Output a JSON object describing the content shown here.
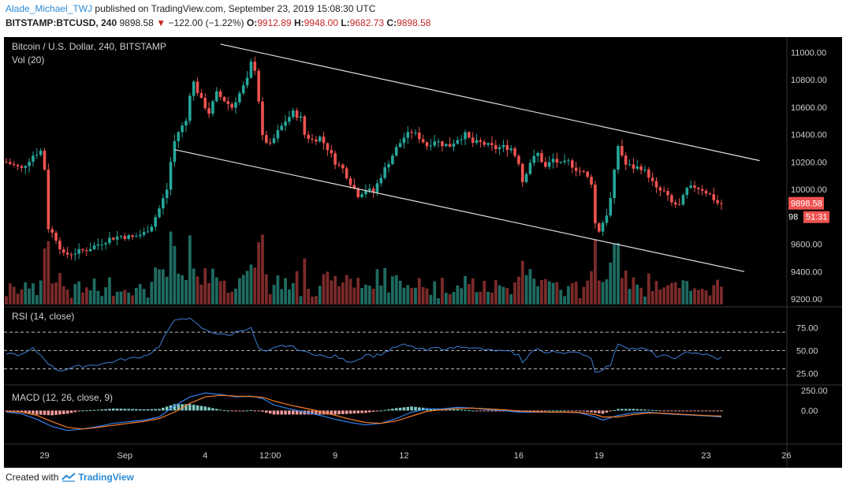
{
  "header": {
    "author": "Alade_Michael_TWJ",
    "published": "published on TradingView.com, September 23, 2019 15:08:30 UTC",
    "symbol": "BITSTAMP:BTCUSD, 240",
    "last": "9898.58",
    "arrow": "▼",
    "change": "−122.00 (−1.22%)",
    "o_label": "O:",
    "o_value": "9912.89",
    "h_label": "H:",
    "h_value": "9948.00",
    "l_label": "L:",
    "l_value": "9682.73",
    "c_label": "C:",
    "c_value": "9898.58"
  },
  "legend": {
    "main_title": "Bitcoin / U.S. Dollar, 240, BITSTAMP",
    "vol_title": "Vol (20)",
    "rsi_title": "RSI (14, close)",
    "macd_title": "MACD (12, 26, close, 9)"
  },
  "price_badge": {
    "value": "9898.58",
    "timer": "51:31",
    "partial": "98"
  },
  "footer": {
    "created_with": "Created with",
    "brand": "TradingView"
  },
  "colors": {
    "background": "#000000",
    "up": "#26a69a",
    "down": "#ef5350",
    "vol_up": "#1f6b61",
    "vol_down": "#7b2a2a",
    "rsi_line": "#3d7fd6",
    "macd_line": "#2f80ed",
    "signal_line": "#f57c2a",
    "hist_pos": "#80cbc4",
    "hist_neg": "#ef9a9a",
    "channel": "#e0e0e0",
    "price_badge": "#ef5350"
  },
  "chart_data": [
    {
      "type": "candlestick",
      "title": "Bitcoin / U.S. Dollar, 240, BITSTAMP",
      "y_ticks": [
        9200,
        9400,
        9600,
        9800,
        10000,
        10200,
        10400,
        10600,
        10800,
        11000
      ],
      "y_tick_labels": [
        "9200.00",
        "9400.00",
        "9600.00",
        "",
        "10000.00",
        "10200.00",
        "10400.00",
        "10600.00",
        "10800.00",
        "11000.00"
      ],
      "ylim": [
        9160,
        11100
      ],
      "x_ticks": [
        "29",
        "Sep",
        "4",
        "12:00",
        "9",
        "12",
        "16",
        "19",
        "23",
        "26"
      ],
      "close_path": [
        [
          0,
          10200
        ],
        [
          4,
          10150
        ],
        [
          7,
          10250
        ],
        [
          9,
          10280
        ],
        [
          10,
          10150
        ],
        [
          11,
          9720
        ],
        [
          13,
          9640
        ],
        [
          15,
          9520
        ],
        [
          18,
          9540
        ],
        [
          21,
          9560
        ],
        [
          24,
          9600
        ],
        [
          27,
          9640
        ],
        [
          30,
          9660
        ],
        [
          33,
          9650
        ],
        [
          36,
          9680
        ],
        [
          38,
          9740
        ],
        [
          40,
          9860
        ],
        [
          42,
          10000
        ],
        [
          43,
          10200
        ],
        [
          44,
          10350
        ],
        [
          45,
          10420
        ],
        [
          47,
          10500
        ],
        [
          48,
          10700
        ],
        [
          49,
          10780
        ],
        [
          51,
          10650
        ],
        [
          53,
          10560
        ],
        [
          55,
          10700
        ],
        [
          57,
          10650
        ],
        [
          59,
          10600
        ],
        [
          61,
          10700
        ],
        [
          63,
          10800
        ],
        [
          64,
          10920
        ],
        [
          65,
          10880
        ],
        [
          66,
          10650
        ],
        [
          67,
          10380
        ],
        [
          69,
          10320
        ],
        [
          71,
          10420
        ],
        [
          73,
          10500
        ],
        [
          75,
          10560
        ],
        [
          77,
          10520
        ],
        [
          78,
          10400
        ],
        [
          80,
          10360
        ],
        [
          82,
          10380
        ],
        [
          84,
          10300
        ],
        [
          86,
          10200
        ],
        [
          88,
          10150
        ],
        [
          90,
          10050
        ],
        [
          92,
          9960
        ],
        [
          94,
          10000
        ],
        [
          96,
          9980
        ],
        [
          98,
          10100
        ],
        [
          100,
          10200
        ],
        [
          102,
          10300
        ],
        [
          104,
          10380
        ],
        [
          106,
          10420
        ],
        [
          108,
          10380
        ],
        [
          110,
          10320
        ],
        [
          112,
          10360
        ],
        [
          114,
          10330
        ],
        [
          116,
          10320
        ],
        [
          118,
          10370
        ],
        [
          120,
          10400
        ],
        [
          122,
          10340
        ],
        [
          124,
          10340
        ],
        [
          126,
          10320
        ],
        [
          128,
          10300
        ],
        [
          130,
          10310
        ],
        [
          132,
          10300
        ],
        [
          134,
          10200
        ],
        [
          135,
          10060
        ],
        [
          137,
          10200
        ],
        [
          139,
          10260
        ],
        [
          141,
          10160
        ],
        [
          143,
          10220
        ],
        [
          145,
          10180
        ],
        [
          147,
          10200
        ],
        [
          149,
          10150
        ],
        [
          151,
          10120
        ],
        [
          153,
          10050
        ],
        [
          154,
          9750
        ],
        [
          155,
          9700
        ],
        [
          157,
          9820
        ],
        [
          158,
          9930
        ],
        [
          160,
          10320
        ],
        [
          162,
          10180
        ],
        [
          164,
          10160
        ],
        [
          166,
          10160
        ],
        [
          168,
          10100
        ],
        [
          170,
          10000
        ],
        [
          172,
          9980
        ],
        [
          174,
          9900
        ],
        [
          176,
          9880
        ],
        [
          178,
          10000
        ],
        [
          180,
          10020
        ],
        [
          182,
          10000
        ],
        [
          184,
          9960
        ],
        [
          186,
          9900
        ],
        [
          187,
          9898.58
        ]
      ],
      "last_close": 9898.58,
      "channel": {
        "upper": [
          [
            56,
            11060
          ],
          [
            197,
            10210
          ]
        ],
        "lower": [
          [
            44,
            10290
          ],
          [
            193,
            9400
          ]
        ]
      }
    },
    {
      "type": "bar",
      "title": "Vol (20)",
      "note": "volume histogram colored by candle direction"
    },
    {
      "type": "line",
      "title": "RSI (14, close)",
      "y_ticks": [
        25,
        50,
        75
      ],
      "y_tick_labels": [
        "25.00",
        "50.00",
        "75.00"
      ],
      "ylim": [
        15,
        95
      ],
      "bands": [
        30,
        50,
        70
      ],
      "path": [
        [
          0,
          47
        ],
        [
          4,
          45
        ],
        [
          7,
          52
        ],
        [
          9,
          45
        ],
        [
          12,
          32
        ],
        [
          14,
          28
        ],
        [
          18,
          32
        ],
        [
          22,
          34
        ],
        [
          26,
          36
        ],
        [
          30,
          40
        ],
        [
          34,
          42
        ],
        [
          36,
          44
        ],
        [
          38,
          48
        ],
        [
          40,
          55
        ],
        [
          42,
          70
        ],
        [
          44,
          82
        ],
        [
          46,
          86
        ],
        [
          48,
          84
        ],
        [
          50,
          78
        ],
        [
          52,
          72
        ],
        [
          54,
          70
        ],
        [
          56,
          68
        ],
        [
          58,
          66
        ],
        [
          60,
          70
        ],
        [
          62,
          73
        ],
        [
          64,
          74
        ],
        [
          66,
          52
        ],
        [
          68,
          48
        ],
        [
          70,
          52
        ],
        [
          72,
          55
        ],
        [
          74,
          55
        ],
        [
          76,
          52
        ],
        [
          78,
          48
        ],
        [
          80,
          47
        ],
        [
          82,
          45
        ],
        [
          84,
          42
        ],
        [
          86,
          44
        ],
        [
          88,
          40
        ],
        [
          90,
          38
        ],
        [
          92,
          40
        ],
        [
          94,
          46
        ],
        [
          96,
          44
        ],
        [
          98,
          46
        ],
        [
          100,
          50
        ],
        [
          102,
          54
        ],
        [
          104,
          56
        ],
        [
          106,
          54
        ],
        [
          108,
          52
        ],
        [
          110,
          50
        ],
        [
          112,
          53
        ],
        [
          114,
          52
        ],
        [
          116,
          52
        ],
        [
          118,
          54
        ],
        [
          120,
          55
        ],
        [
          122,
          52
        ],
        [
          124,
          52
        ],
        [
          126,
          50
        ],
        [
          128,
          50
        ],
        [
          130,
          49
        ],
        [
          132,
          48
        ],
        [
          134,
          45
        ],
        [
          135,
          36
        ],
        [
          137,
          48
        ],
        [
          139,
          52
        ],
        [
          141,
          46
        ],
        [
          143,
          50
        ],
        [
          145,
          48
        ],
        [
          147,
          48
        ],
        [
          149,
          47
        ],
        [
          151,
          46
        ],
        [
          153,
          42
        ],
        [
          154,
          26
        ],
        [
          156,
          30
        ],
        [
          158,
          34
        ],
        [
          160,
          58
        ],
        [
          162,
          54
        ],
        [
          164,
          52
        ],
        [
          166,
          52
        ],
        [
          168,
          50
        ],
        [
          170,
          44
        ],
        [
          172,
          44
        ],
        [
          174,
          42
        ],
        [
          176,
          43
        ],
        [
          178,
          48
        ],
        [
          180,
          48
        ],
        [
          182,
          46
        ],
        [
          184,
          44
        ],
        [
          186,
          41
        ],
        [
          187,
          42
        ]
      ]
    },
    {
      "type": "line",
      "title": "MACD (12, 26, close, 9)",
      "y_ticks": [
        0,
        250
      ],
      "y_tick_labels": [
        "0.00",
        "250.00"
      ],
      "ylim": [
        -380,
        300
      ],
      "series": [
        {
          "name": "MACD",
          "values": [
            [
              0,
              -20
            ],
            [
              4,
              -40
            ],
            [
              8,
              -110
            ],
            [
              12,
              -200
            ],
            [
              16,
              -250
            ],
            [
              20,
              -230
            ],
            [
              24,
              -200
            ],
            [
              28,
              -160
            ],
            [
              32,
              -140
            ],
            [
              36,
              -120
            ],
            [
              40,
              -80
            ],
            [
              44,
              60
            ],
            [
              48,
              170
            ],
            [
              52,
              220
            ],
            [
              56,
              200
            ],
            [
              60,
              170
            ],
            [
              64,
              180
            ],
            [
              67,
              150
            ],
            [
              70,
              70
            ],
            [
              74,
              20
            ],
            [
              78,
              -20
            ],
            [
              82,
              -60
            ],
            [
              86,
              -110
            ],
            [
              90,
              -150
            ],
            [
              94,
              -180
            ],
            [
              98,
              -160
            ],
            [
              102,
              -100
            ],
            [
              106,
              -20
            ],
            [
              110,
              20
            ],
            [
              114,
              20
            ],
            [
              118,
              40
            ],
            [
              122,
              30
            ],
            [
              126,
              10
            ],
            [
              130,
              0
            ],
            [
              134,
              -20
            ],
            [
              138,
              -20
            ],
            [
              142,
              -20
            ],
            [
              146,
              -20
            ],
            [
              150,
              -30
            ],
            [
              154,
              -80
            ],
            [
              156,
              -120
            ],
            [
              160,
              -60
            ],
            [
              164,
              -30
            ],
            [
              168,
              -20
            ],
            [
              172,
              -40
            ],
            [
              176,
              -50
            ],
            [
              180,
              -60
            ],
            [
              184,
              -70
            ],
            [
              187,
              -80
            ]
          ]
        },
        {
          "name": "Signal",
          "values": [
            [
              0,
              -10
            ],
            [
              4,
              -20
            ],
            [
              8,
              -60
            ],
            [
              12,
              -140
            ],
            [
              16,
              -210
            ],
            [
              20,
              -230
            ],
            [
              24,
              -210
            ],
            [
              28,
              -185
            ],
            [
              32,
              -160
            ],
            [
              36,
              -135
            ],
            [
              40,
              -100
            ],
            [
              44,
              -20
            ],
            [
              48,
              90
            ],
            [
              52,
              170
            ],
            [
              56,
              190
            ],
            [
              60,
              180
            ],
            [
              64,
              175
            ],
            [
              67,
              165
            ],
            [
              70,
              120
            ],
            [
              74,
              70
            ],
            [
              78,
              30
            ],
            [
              82,
              -10
            ],
            [
              86,
              -60
            ],
            [
              90,
              -110
            ],
            [
              94,
              -150
            ],
            [
              98,
              -160
            ],
            [
              102,
              -130
            ],
            [
              106,
              -70
            ],
            [
              110,
              -10
            ],
            [
              114,
              10
            ],
            [
              118,
              25
            ],
            [
              122,
              30
            ],
            [
              126,
              20
            ],
            [
              130,
              10
            ],
            [
              134,
              -5
            ],
            [
              138,
              -15
            ],
            [
              142,
              -20
            ],
            [
              146,
              -20
            ],
            [
              150,
              -25
            ],
            [
              154,
              -50
            ],
            [
              156,
              -80
            ],
            [
              160,
              -80
            ],
            [
              164,
              -50
            ],
            [
              168,
              -30
            ],
            [
              172,
              -35
            ],
            [
              176,
              -45
            ],
            [
              180,
              -55
            ],
            [
              184,
              -65
            ],
            [
              187,
              -70
            ]
          ]
        }
      ]
    }
  ]
}
